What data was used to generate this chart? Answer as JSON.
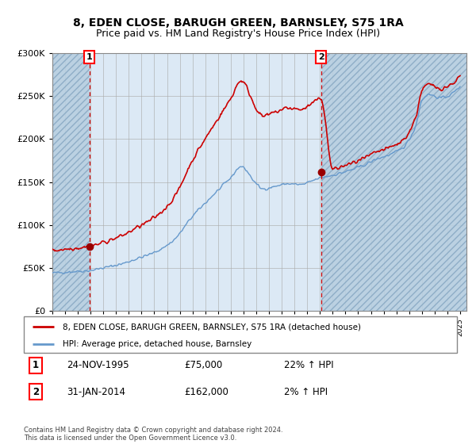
{
  "title": "8, EDEN CLOSE, BARUGH GREEN, BARNSLEY, S75 1RA",
  "subtitle": "Price paid vs. HM Land Registry's House Price Index (HPI)",
  "legend_line1": "8, EDEN CLOSE, BARUGH GREEN, BARNSLEY, S75 1RA (detached house)",
  "legend_line2": "HPI: Average price, detached house, Barnsley",
  "point1_label": "1",
  "point1_date": "24-NOV-1995",
  "point1_price": "£75,000",
  "point1_hpi": "22% ↑ HPI",
  "point1_x": 1995.9,
  "point1_y": 75000,
  "point2_label": "2",
  "point2_date": "31-JAN-2014",
  "point2_price": "£162,000",
  "point2_hpi": "2% ↑ HPI",
  "point2_x": 2014.08,
  "point2_y": 162000,
  "footer": "Contains HM Land Registry data © Crown copyright and database right 2024.\nThis data is licensed under the Open Government Licence v3.0.",
  "ylim": [
    0,
    300000
  ],
  "xlim_start": 1993.0,
  "xlim_end": 2025.5,
  "hatch_left_end": 1995.9,
  "hatch_right_start": 2014.08,
  "bg_color": "#ffffff",
  "plot_bg_color": "#dce9f5",
  "hatch_color": "#b8cfe0",
  "grid_color": "#aaaaaa",
  "red_line_color": "#cc0000",
  "blue_line_color": "#6699cc",
  "dot_color": "#990000",
  "title_fontsize": 10,
  "subtitle_fontsize": 9
}
